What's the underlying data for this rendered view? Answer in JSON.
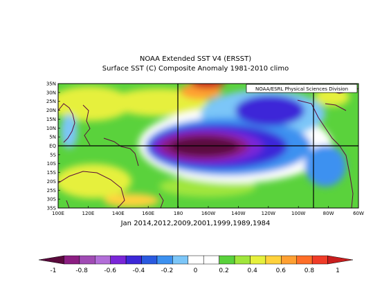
{
  "title_line1": "NOAA Extended SST V4 (ERSST)",
  "title_line2": "Surface SST (C) Composite Anomaly 1981-2010 climo",
  "credit": "NOAA/ESRL Physical Sciences Division",
  "period_label": "Jan 2014,2012,2009,2001,1999,1989,1984",
  "lat_labels": [
    "35N",
    "30N",
    "25N",
    "20N",
    "15N",
    "10N",
    "5N",
    "EQ",
    "5S",
    "10S",
    "15S",
    "20S",
    "25S",
    "30S",
    "35S"
  ],
  "lon_labels": [
    "100E",
    "120E",
    "140E",
    "160E",
    "180",
    "160W",
    "140W",
    "120W",
    "100W",
    "80W",
    "60W"
  ],
  "reference_lines": {
    "lon": [
      "180",
      "90W"
    ],
    "lat": [
      "EQ"
    ]
  },
  "colorbar": {
    "labels": [
      "-1",
      "-0.8",
      "-0.6",
      "-0.4",
      "-0.2",
      "0",
      "0.2",
      "0.4",
      "0.6",
      "0.8",
      "1"
    ],
    "colors": [
      "#5a0a3c",
      "#8c1e82",
      "#a04bb4",
      "#b26ed8",
      "#7a26d8",
      "#3c28d8",
      "#2a5ae0",
      "#3c91f0",
      "#7cc6f8",
      "#ffffff",
      "#ffffff",
      "#5ad23c",
      "#a0e63c",
      "#e6f03c",
      "#ffd23c",
      "#ffa032",
      "#ff6e28",
      "#f03c28",
      "#c81e1e"
    ]
  }
}
